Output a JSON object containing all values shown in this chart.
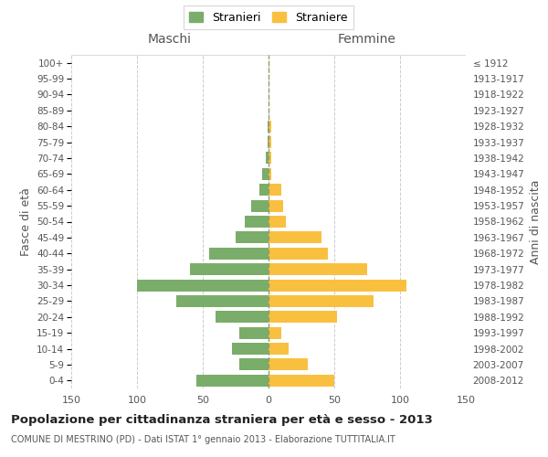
{
  "age_groups": [
    "0-4",
    "5-9",
    "10-14",
    "15-19",
    "20-24",
    "25-29",
    "30-34",
    "35-39",
    "40-44",
    "45-49",
    "50-54",
    "55-59",
    "60-64",
    "65-69",
    "70-74",
    "75-79",
    "80-84",
    "85-89",
    "90-94",
    "95-99",
    "100+"
  ],
  "birth_years": [
    "2008-2012",
    "2003-2007",
    "1998-2002",
    "1993-1997",
    "1988-1992",
    "1983-1987",
    "1978-1982",
    "1973-1977",
    "1968-1972",
    "1963-1967",
    "1958-1962",
    "1953-1957",
    "1948-1952",
    "1943-1947",
    "1938-1942",
    "1933-1937",
    "1928-1932",
    "1923-1927",
    "1918-1922",
    "1913-1917",
    "≤ 1912"
  ],
  "maschi": [
    55,
    22,
    28,
    22,
    40,
    70,
    100,
    60,
    45,
    25,
    18,
    13,
    7,
    5,
    2,
    1,
    1,
    0,
    0,
    0,
    0
  ],
  "femmine": [
    50,
    30,
    15,
    10,
    52,
    80,
    105,
    75,
    45,
    40,
    13,
    11,
    10,
    2,
    2,
    2,
    2,
    0,
    0,
    0,
    0
  ],
  "color_maschi": "#7aad6a",
  "color_femmine": "#f9c040",
  "title": "Popolazione per cittadinanza straniera per età e sesso - 2013",
  "subtitle": "COMUNE DI MESTRINO (PD) - Dati ISTAT 1° gennaio 2013 - Elaborazione TUTTITALIA.IT",
  "label_maschi": "Maschi",
  "label_femmine": "Femmine",
  "ylabel_left": "Fasce di età",
  "ylabel_right": "Anni di nascita",
  "legend_stranieri": "Stranieri",
  "legend_straniere": "Straniere",
  "xlim": 150,
  "background_color": "#ffffff",
  "grid_color": "#cccccc"
}
